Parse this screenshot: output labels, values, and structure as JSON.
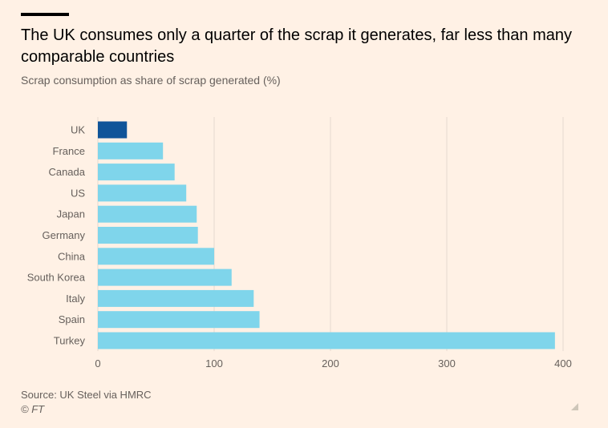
{
  "header": {
    "title": "The UK consumes only a quarter of the scrap it generates, far less than many comparable countries",
    "subtitle": "Scrap consumption as share of scrap generated (%)"
  },
  "footer": {
    "source": "Source: UK Steel via HMRC",
    "credit": "© FT"
  },
  "colors": {
    "highlight": "#0F5499",
    "bar": "#7FD5EB",
    "grid": "#E6D9CE",
    "background": "#FFF1E5"
  },
  "chart_data": {
    "type": "bar",
    "orientation": "horizontal",
    "title": "The UK consumes only a quarter of the scrap it generates, far less than many comparable countries",
    "subtitle": "Scrap consumption as share of scrap generated (%)",
    "categories": [
      "UK",
      "France",
      "Canada",
      "US",
      "Japan",
      "Germany",
      "China",
      "South Korea",
      "Italy",
      "Spain",
      "Turkey"
    ],
    "values": [
      25,
      56,
      66,
      76,
      85,
      86,
      100,
      115,
      134,
      139,
      393
    ],
    "highlight_category": "UK",
    "xlim": [
      0,
      400
    ],
    "xticks": [
      0,
      100,
      200,
      300,
      400
    ],
    "grid": true,
    "xlabel": "",
    "ylabel": ""
  }
}
